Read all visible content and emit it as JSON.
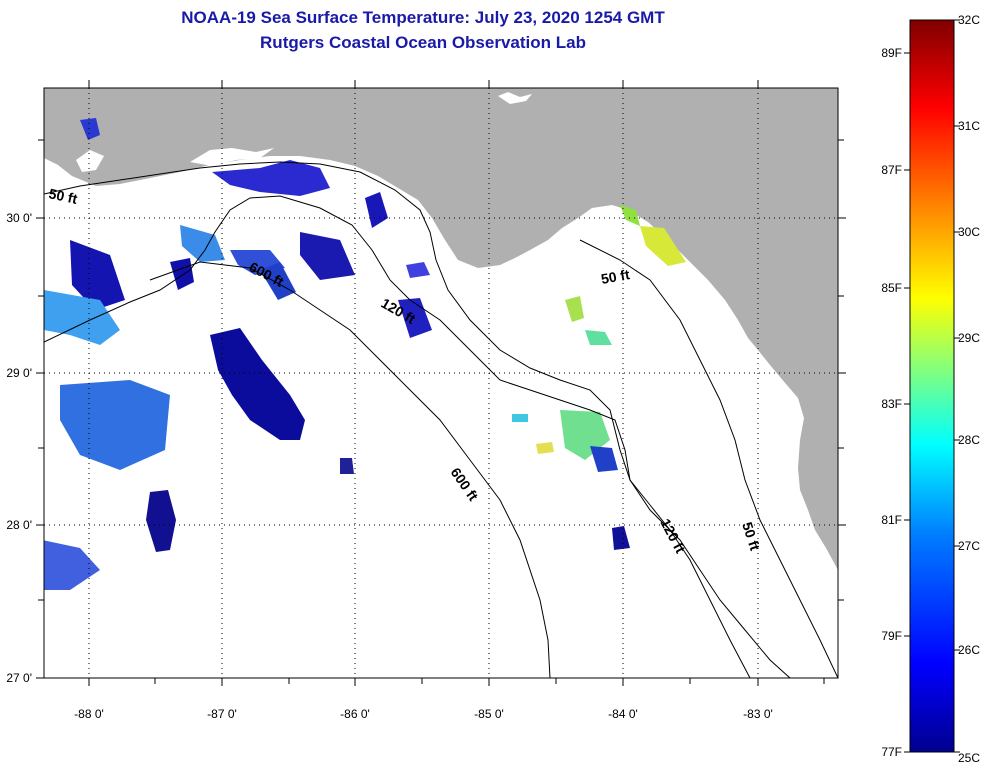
{
  "title": {
    "line1": "NOAA-19 Sea Surface Temperature:  July 23, 2020 1254 GMT",
    "line2": "Rutgers Coastal Ocean Observation Lab"
  },
  "axes": {
    "longitude_ticks": [
      "-88 0'",
      "-87 0'",
      "-86 0'",
      "-85 0'",
      "-84 0'",
      "-83 0'"
    ],
    "latitude_ticks": [
      "30 0'",
      "29 0'",
      "28 0'",
      "27 0'"
    ]
  },
  "contour_labels": {
    "c50_west": "50 ft",
    "c600_north": "600 ft",
    "c120_north": "120 ft",
    "c50_east": "50 ft",
    "c600_south": "600 ft",
    "c120_south": "120 ft",
    "c50_south": "50 ft"
  },
  "colorbar": {
    "celsius_labels": [
      "32C",
      "31C",
      "30C",
      "29C",
      "28C",
      "27C",
      "26C",
      "25C"
    ],
    "fahrenheit_labels": [
      "89F",
      "87F",
      "85F",
      "83F",
      "81F",
      "79F",
      "77F"
    ],
    "colors": [
      "#00008f",
      "#0000ff",
      "#0080ff",
      "#00ffff",
      "#80ff80",
      "#ffff00",
      "#ff8000",
      "#ff0000",
      "#800000"
    ]
  },
  "colors": {
    "land": "#b0b0b0",
    "water": "#ffffff",
    "title": "#1a1aa8"
  }
}
